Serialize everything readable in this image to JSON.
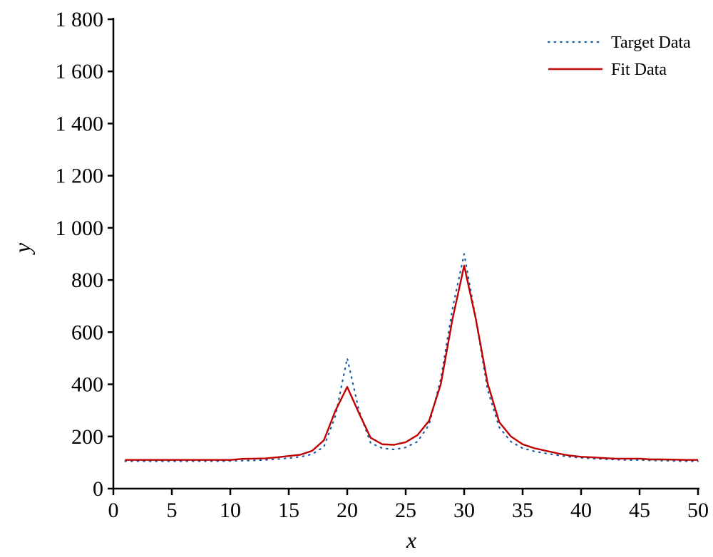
{
  "chart_data": {
    "type": "line",
    "xlabel": "x",
    "ylabel": "y",
    "xlim": [
      0,
      50
    ],
    "ylim": [
      0,
      1800
    ],
    "x_ticks": [
      0,
      5,
      10,
      15,
      20,
      25,
      30,
      35,
      40,
      45,
      50
    ],
    "x_tick_labels": [
      "0",
      "5",
      "10",
      "15",
      "20",
      "25",
      "30",
      "35",
      "40",
      "45",
      "50"
    ],
    "y_ticks": [
      0,
      200,
      400,
      600,
      800,
      1000,
      1200,
      1400,
      1600,
      1800
    ],
    "y_tick_labels": [
      "0",
      "200",
      "400",
      "600",
      "800",
      "1 000",
      "1 200",
      "1 400",
      "1 600",
      "1 800"
    ],
    "grid": false,
    "legend": "top-right",
    "x": [
      1,
      2,
      3,
      4,
      5,
      6,
      7,
      8,
      9,
      10,
      11,
      12,
      13,
      14,
      15,
      16,
      17,
      18,
      19,
      20,
      21,
      22,
      23,
      24,
      25,
      26,
      27,
      28,
      29,
      30,
      31,
      32,
      33,
      34,
      35,
      36,
      37,
      38,
      39,
      40,
      41,
      42,
      43,
      44,
      45,
      46,
      47,
      48,
      49,
      50
    ],
    "series": [
      {
        "name": "Target Data",
        "style": "dotted",
        "color": "#1f5fa8",
        "values": [
          105,
          105,
          105,
          105,
          105,
          105,
          105,
          105,
          105,
          106,
          107,
          108,
          110,
          113,
          117,
          122,
          132,
          160,
          280,
          500,
          300,
          175,
          155,
          150,
          158,
          180,
          245,
          420,
          690,
          900,
          650,
          380,
          235,
          180,
          155,
          143,
          135,
          128,
          122,
          118,
          115,
          113,
          111,
          110,
          110,
          108,
          107,
          106,
          105,
          105
        ]
      },
      {
        "name": "Fit Data",
        "style": "solid",
        "color": "#c00000",
        "values": [
          110,
          110,
          110,
          110,
          110,
          110,
          110,
          110,
          110,
          110,
          114,
          115,
          116,
          120,
          125,
          130,
          145,
          185,
          300,
          390,
          290,
          195,
          170,
          168,
          178,
          205,
          260,
          400,
          650,
          855,
          650,
          405,
          255,
          200,
          170,
          155,
          145,
          135,
          127,
          122,
          120,
          117,
          115,
          115,
          115,
          112,
          112,
          111,
          110,
          110
        ]
      }
    ]
  }
}
